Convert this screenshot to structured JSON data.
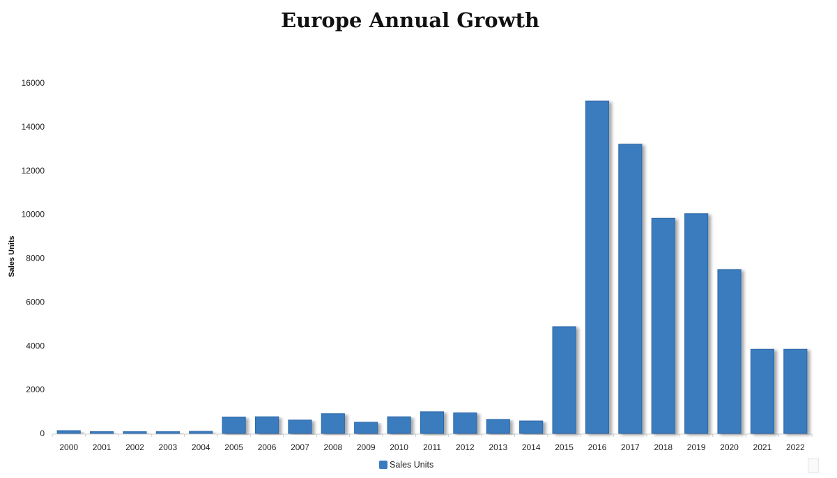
{
  "chart_data": {
    "type": "bar",
    "title": "Europe Annual Growth",
    "xlabel": "",
    "ylabel": "Sales Units",
    "categories": [
      "2000",
      "2001",
      "2002",
      "2003",
      "2004",
      "2005",
      "2006",
      "2007",
      "2008",
      "2009",
      "2010",
      "2011",
      "2012",
      "2013",
      "2014",
      "2015",
      "2016",
      "2017",
      "2018",
      "2019",
      "2020",
      "2021",
      "2022"
    ],
    "series": [
      {
        "name": "Sales Units",
        "color": "#3a7bbf",
        "values": [
          130,
          80,
          90,
          90,
          100,
          750,
          760,
          610,
          900,
          510,
          760,
          990,
          940,
          640,
          570,
          4870,
          15170,
          13200,
          9820,
          10030,
          7480,
          3840,
          3840
        ]
      }
    ],
    "ylim": [
      0,
      16000
    ],
    "yticks": [
      0,
      2000,
      4000,
      6000,
      8000,
      10000,
      12000,
      14000,
      16000
    ],
    "grid": false,
    "legend_position": "bottom-center"
  }
}
